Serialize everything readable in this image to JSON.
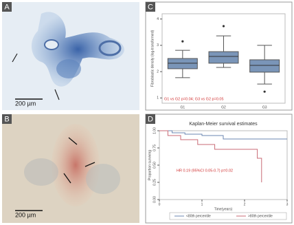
{
  "panels": {
    "a": {
      "label": "A",
      "scale_bar": "200 µm"
    },
    "b": {
      "label": "B",
      "scale_bar": "200 µm"
    }
  },
  "chart_data": [
    {
      "type": "box",
      "panel_label": "C",
      "ylabel": "Fibroblastic density (log-transformed)",
      "categories": [
        "G1",
        "G2",
        "G3"
      ],
      "color": "#7a95b8",
      "boxes": [
        {
          "min": 1.77,
          "q1": 2.11,
          "median": 2.32,
          "q3": 2.5,
          "max": 2.81,
          "outliers": [
            3.15
          ]
        },
        {
          "min": 2.16,
          "q1": 2.32,
          "median": 2.58,
          "q3": 2.76,
          "max": 3.36,
          "outliers": [
            3.73
          ]
        },
        {
          "min": 1.53,
          "q1": 1.98,
          "median": 2.24,
          "q3": 2.45,
          "max": 3.0,
          "outliers": [
            1.24
          ]
        }
      ],
      "ylim": [
        0.8,
        4.2
      ],
      "yticks": [
        1,
        2,
        3,
        4
      ],
      "annotation": "G1 vs G2 p=0.04; G3 vs G2 p=0.05",
      "annotation_color": "#d03030"
    },
    {
      "type": "step",
      "panel_label": "D",
      "title": "Kaplan-Meier survival estimates",
      "xlabel": "Time(years)",
      "ylabel": "Proportion surviving",
      "series": [
        {
          "name": "<80th percentile",
          "color": "#6a86b0",
          "x": [
            0,
            0.3,
            0.6,
            1.0,
            1.5,
            3.0
          ],
          "values": [
            1,
            0.97,
            0.95,
            0.93,
            0.88,
            0.88
          ]
        },
        {
          "name": ">80th percentile",
          "color": "#c86a74",
          "x": [
            0,
            0.2,
            0.5,
            0.9,
            1.3,
            2.3,
            2.4
          ],
          "values": [
            1,
            0.93,
            0.87,
            0.8,
            0.73,
            0.6,
            0.25
          ]
        }
      ],
      "xlim": [
        0,
        3
      ],
      "xticks": [
        0,
        1,
        2,
        3
      ],
      "ylim": [
        0,
        1
      ],
      "yticks": [
        {
          "value": 0,
          "label": "0.00"
        },
        {
          "value": 0.25,
          "label": "0.25"
        },
        {
          "value": 0.5,
          "label": "0.50"
        },
        {
          "value": 0.75,
          "label": "0.75"
        },
        {
          "value": 1,
          "label": "1.00"
        }
      ],
      "annotation": "HR 0.19 (95%CI 0.05-0.7) p=0.02",
      "annotation_color": "#d03030"
    }
  ]
}
